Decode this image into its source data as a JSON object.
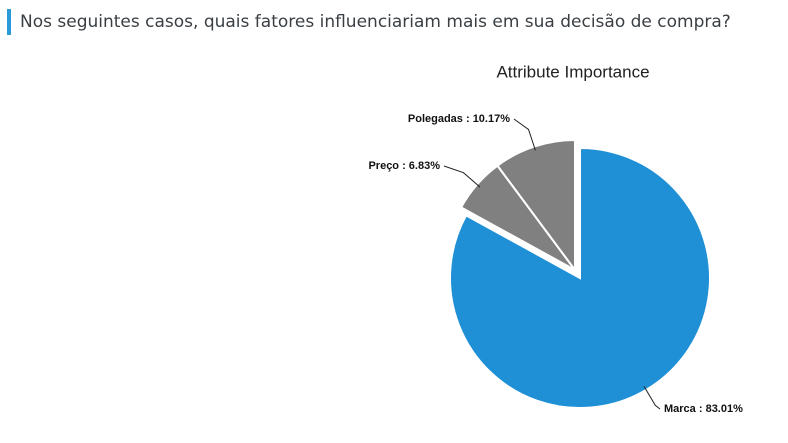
{
  "header": {
    "title": "Nos seguintes casos, quais fatores influenciariam mais em sua decisão de compra?"
  },
  "chart_data": {
    "type": "pie",
    "title": "Attribute Importance",
    "categories": [
      "Marca",
      "Preço",
      "Polegadas"
    ],
    "values": [
      83.01,
      6.83,
      10.17
    ],
    "value_labels": [
      "Marca : 83.01%",
      "Preço : 6.83%",
      "Polegadas : 10.17%"
    ],
    "colors": [
      "#1f8fd6",
      "#808080",
      "#808080"
    ]
  }
}
